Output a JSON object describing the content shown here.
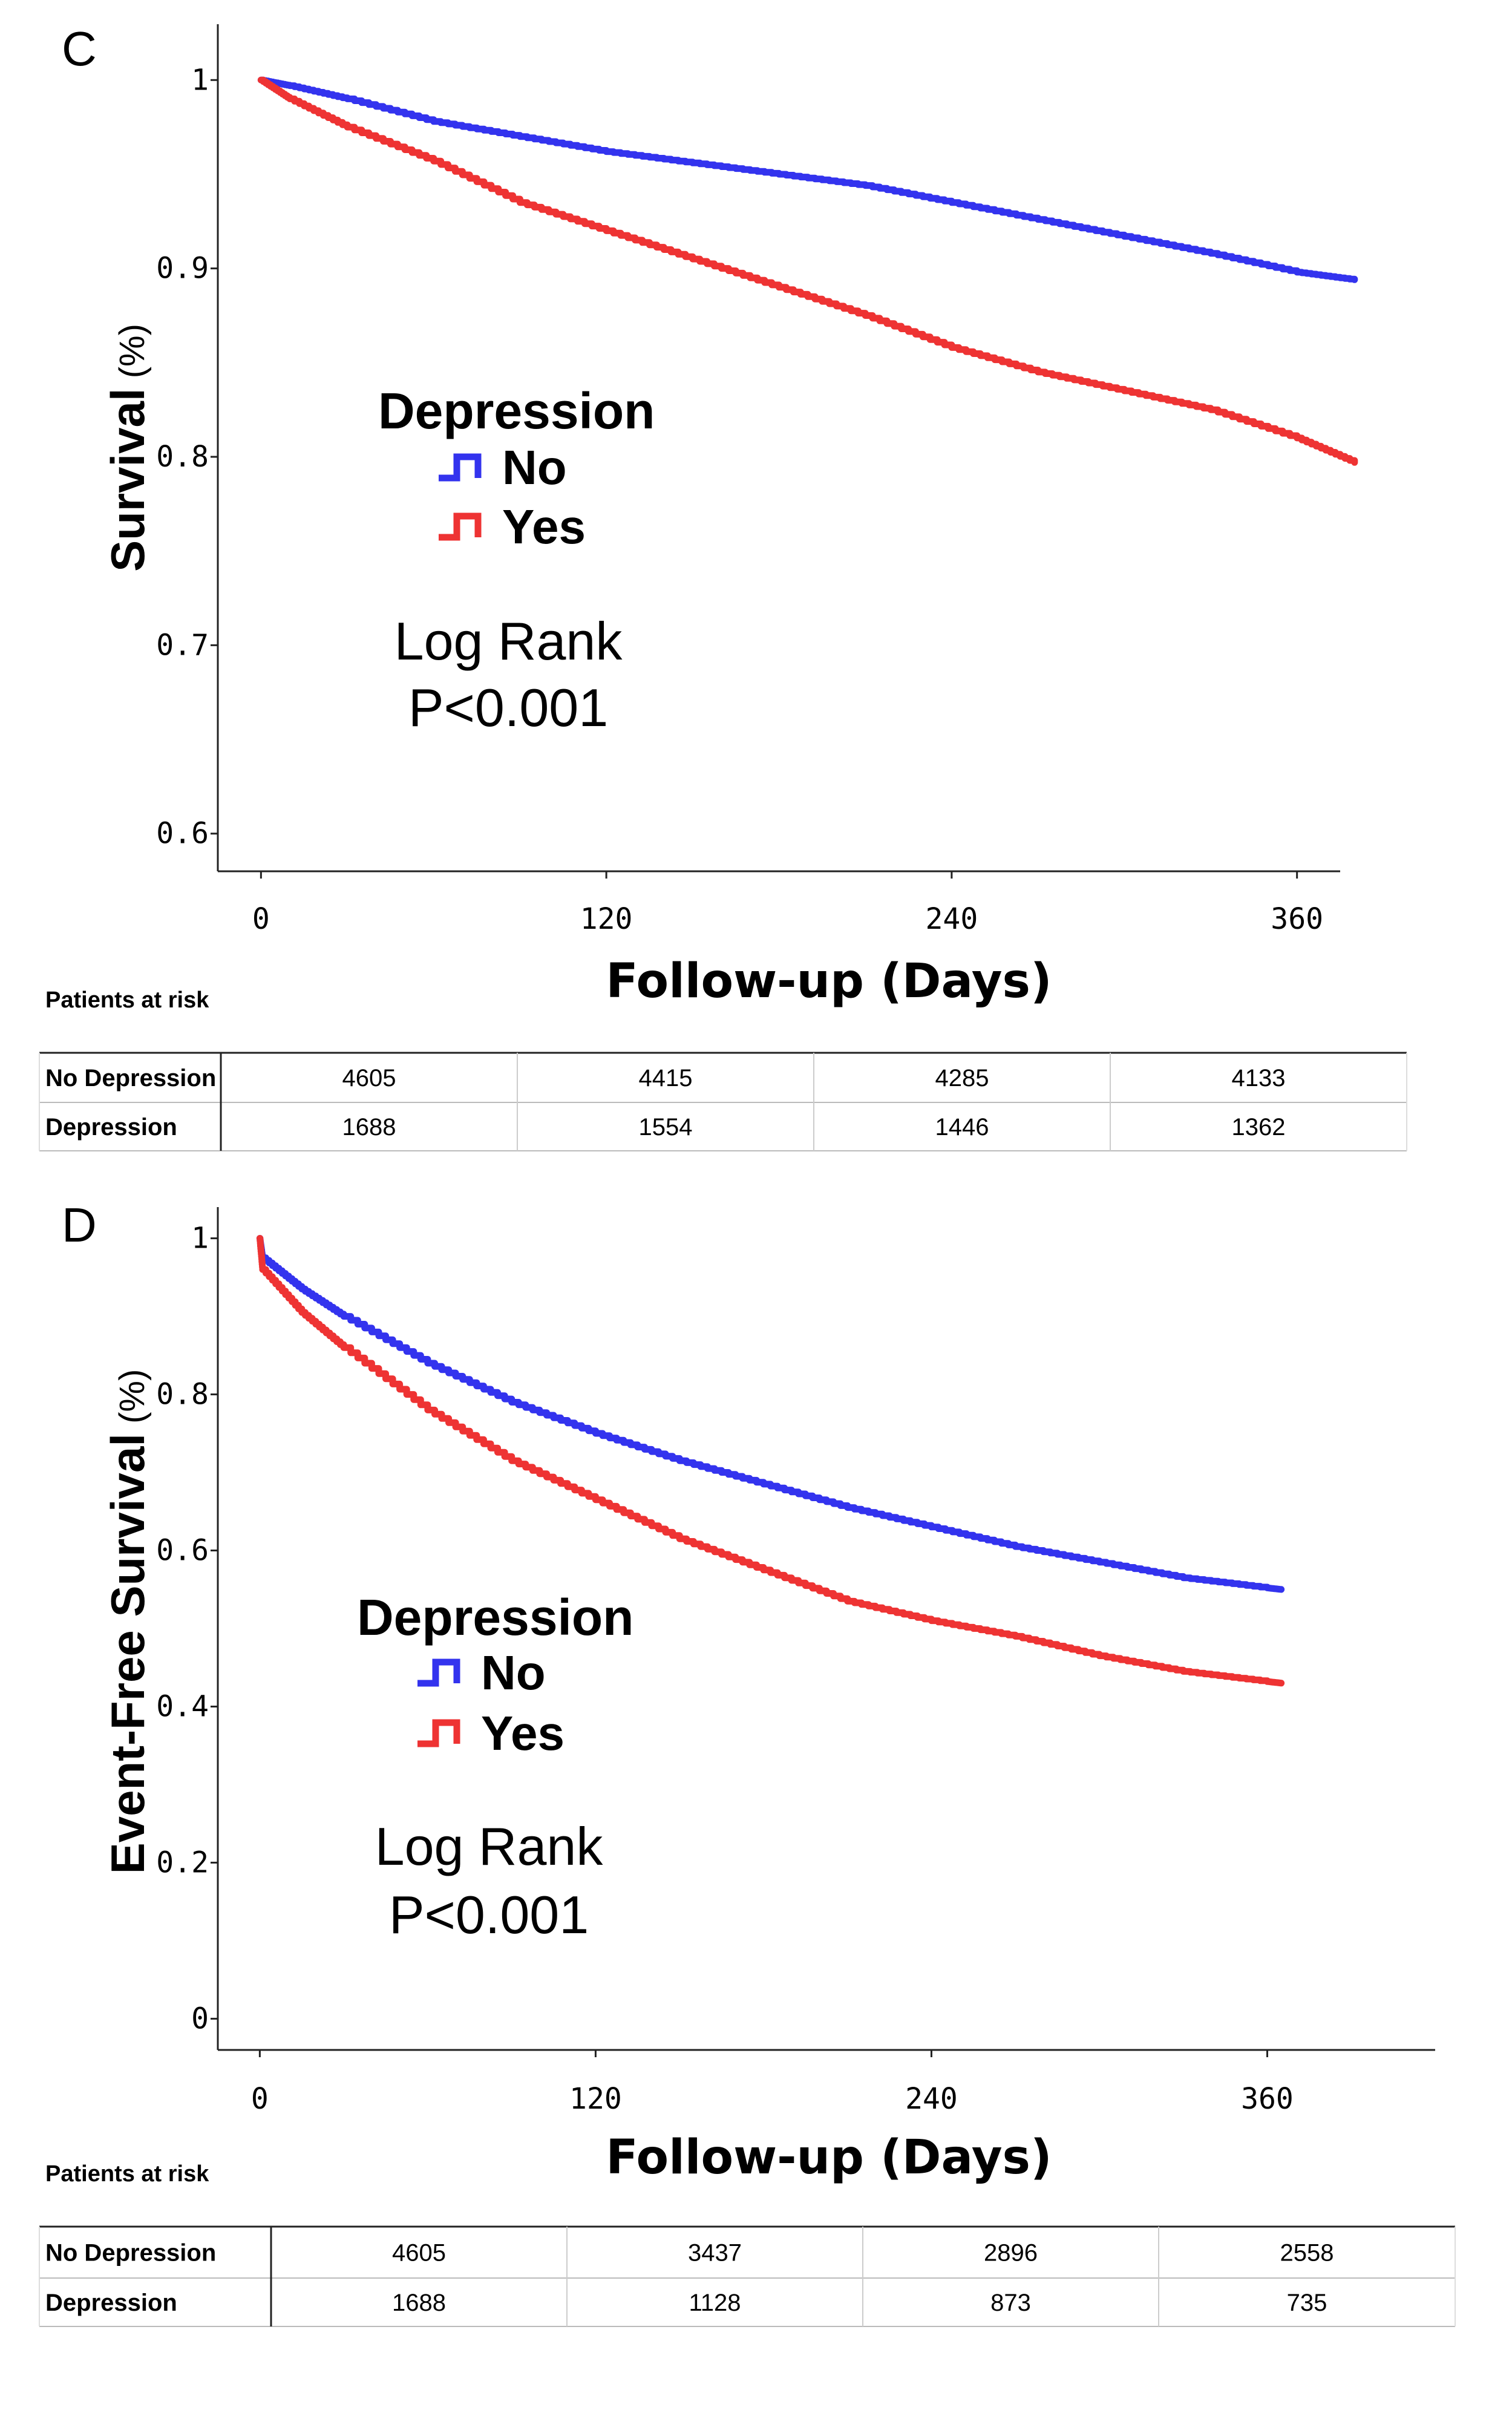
{
  "chart_data": [
    {
      "type": "line",
      "panel_label": "C",
      "ylabel_main": "Survival",
      "ylabel_unit": "(%)",
      "xlabel_main": "Follow-up",
      "xlabel_unit": "(Days)",
      "xlim": [
        -15,
        375
      ],
      "ylim": [
        0.58,
        1.02
      ],
      "xticks": [
        0,
        120,
        240,
        360
      ],
      "xtick_labels": [
        "0",
        "120",
        "240",
        "360"
      ],
      "yticks": [
        1,
        0.9,
        0.8,
        0.7,
        0.6
      ],
      "ytick_labels": [
        "1",
        "0.9",
        "0.8",
        "0.7",
        "0.6"
      ],
      "legend": {
        "title": "Depression",
        "position": "center-left",
        "entries": [
          "No",
          "Yes"
        ]
      },
      "annotation": [
        "Log Rank",
        "P<0.001"
      ],
      "series": [
        {
          "name": "No",
          "color": "#3333ee",
          "x": [
            0,
            10,
            30,
            60,
            90,
            120,
            150,
            180,
            210,
            240,
            270,
            300,
            330,
            360,
            380
          ],
          "y": [
            1.0,
            0.997,
            0.99,
            0.978,
            0.97,
            0.962,
            0.956,
            0.95,
            0.944,
            0.935,
            0.926,
            0.917,
            0.908,
            0.898,
            0.894
          ]
        },
        {
          "name": "Yes",
          "color": "#ee3333",
          "x": [
            0,
            10,
            30,
            60,
            90,
            120,
            150,
            180,
            210,
            240,
            270,
            300,
            330,
            360,
            380
          ],
          "y": [
            1.0,
            0.99,
            0.975,
            0.957,
            0.935,
            0.92,
            0.905,
            0.89,
            0.875,
            0.858,
            0.845,
            0.835,
            0.825,
            0.81,
            0.797
          ]
        }
      ],
      "risk_table": {
        "title": "Patients at risk",
        "rows": [
          {
            "label": "No Depression",
            "values": [
              "4605",
              "4415",
              "4285",
              "4133"
            ]
          },
          {
            "label": "Depression",
            "values": [
              "1688",
              "1554",
              "1446",
              "1362"
            ]
          }
        ]
      }
    },
    {
      "type": "line",
      "panel_label": "D",
      "ylabel_main": "Event-Free Survival",
      "ylabel_unit": "(%)",
      "xlabel_main": "Follow-up",
      "xlabel_unit": "(Days)",
      "xlim": [
        -15,
        420
      ],
      "ylim": [
        -0.04,
        1.04
      ],
      "xticks": [
        0,
        120,
        240,
        360
      ],
      "xtick_labels": [
        "0",
        "120",
        "240",
        "360"
      ],
      "yticks": [
        1,
        0.8,
        0.6,
        0.4,
        0.2,
        0
      ],
      "ytick_labels": [
        "1",
        "0.8",
        "0.6",
        "0.4",
        "0.2",
        "0"
      ],
      "legend": {
        "title": "Depression",
        "position": "center-left",
        "entries": [
          "No",
          "Yes"
        ]
      },
      "annotation": [
        "Log Rank",
        "P<0.001"
      ],
      "series": [
        {
          "name": "No",
          "color": "#3333ee",
          "x": [
            0,
            1,
            15,
            30,
            60,
            90,
            120,
            150,
            180,
            210,
            240,
            270,
            300,
            330,
            360,
            365
          ],
          "y": [
            1.0,
            0.975,
            0.935,
            0.9,
            0.84,
            0.79,
            0.75,
            0.715,
            0.685,
            0.655,
            0.63,
            0.605,
            0.585,
            0.565,
            0.552,
            0.55
          ]
        },
        {
          "name": "Yes",
          "color": "#ee3333",
          "x": [
            0,
            1,
            15,
            30,
            60,
            90,
            120,
            150,
            180,
            210,
            240,
            270,
            300,
            330,
            360,
            365
          ],
          "y": [
            1.0,
            0.96,
            0.905,
            0.86,
            0.78,
            0.715,
            0.665,
            0.615,
            0.575,
            0.535,
            0.51,
            0.49,
            0.465,
            0.445,
            0.432,
            0.43
          ]
        }
      ],
      "risk_table": {
        "title": "Patients at risk",
        "rows": [
          {
            "label": "No Depression",
            "values": [
              "4605",
              "3437",
              "2896",
              "2558"
            ]
          },
          {
            "label": "Depression",
            "values": [
              "1688",
              "1128",
              "873",
              "735"
            ]
          }
        ]
      }
    }
  ]
}
